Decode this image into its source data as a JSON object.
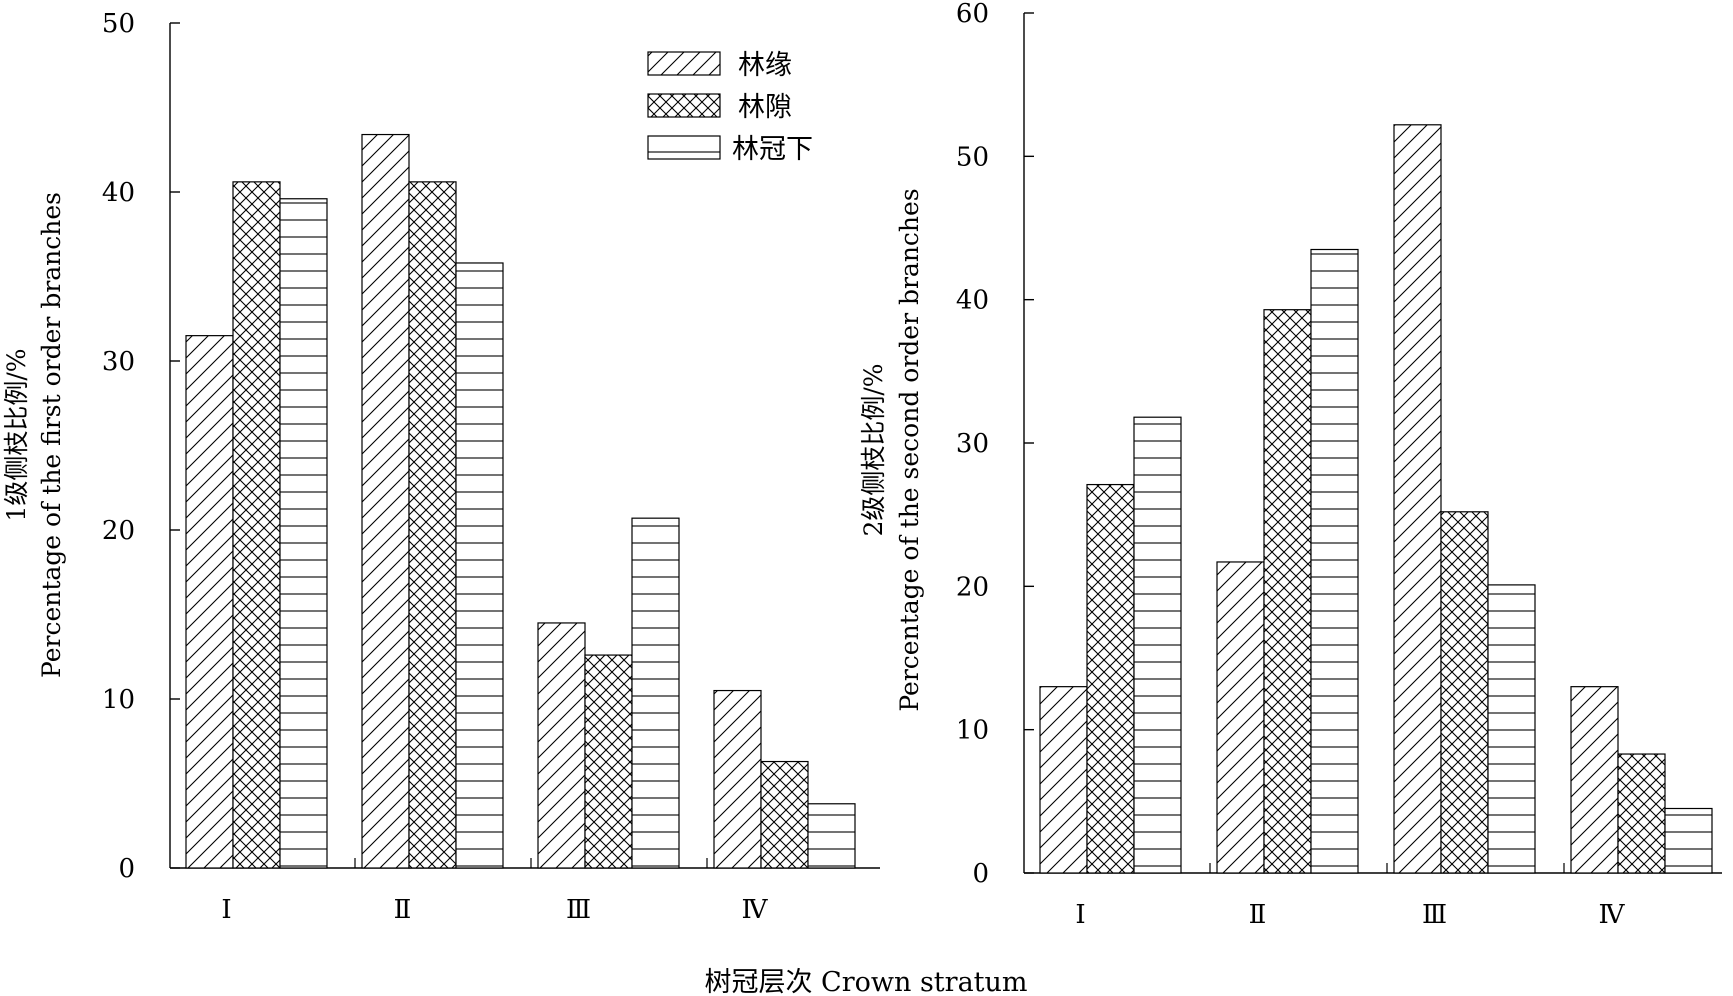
{
  "legend": [
    {
      "label": "林缘",
      "pattern": "diagonal"
    },
    {
      "label": "林隙",
      "pattern": "crosshatch"
    },
    {
      "label": "林冠下",
      "pattern": "horizontal"
    }
  ],
  "x_title": "树冠层次 Crown stratum",
  "chart_data": [
    {
      "type": "bar",
      "categories": [
        "Ⅰ",
        "Ⅱ",
        "Ⅲ",
        "Ⅳ"
      ],
      "series": [
        {
          "name": "林缘",
          "values": [
            31.5,
            43.4,
            14.5,
            10.5
          ]
        },
        {
          "name": "林隙",
          "values": [
            40.6,
            40.6,
            12.6,
            6.3
          ]
        },
        {
          "name": "林冠下",
          "values": [
            39.6,
            35.8,
            20.7,
            3.8
          ]
        }
      ],
      "ylabel_cn": "1级侧枝比例/%",
      "ylabel_en": "Percentage of the first order branches",
      "ylim": [
        0,
        50
      ],
      "yticks": [
        0,
        10,
        20,
        30,
        40,
        50
      ]
    },
    {
      "type": "bar",
      "categories": [
        "Ⅰ",
        "Ⅱ",
        "Ⅲ",
        "Ⅳ"
      ],
      "series": [
        {
          "name": "林缘",
          "values": [
            13.0,
            21.7,
            52.2,
            13.0
          ]
        },
        {
          "name": "林隙",
          "values": [
            27.1,
            39.3,
            25.2,
            8.3
          ]
        },
        {
          "name": "林冠下",
          "values": [
            31.8,
            43.5,
            20.1,
            4.5
          ]
        }
      ],
      "ylabel_cn": "2级侧枝比例/%",
      "ylabel_en": "Percentage of the second order branches",
      "ylim": [
        0,
        60
      ],
      "yticks": [
        0,
        10,
        20,
        30,
        40,
        50,
        60
      ]
    }
  ]
}
